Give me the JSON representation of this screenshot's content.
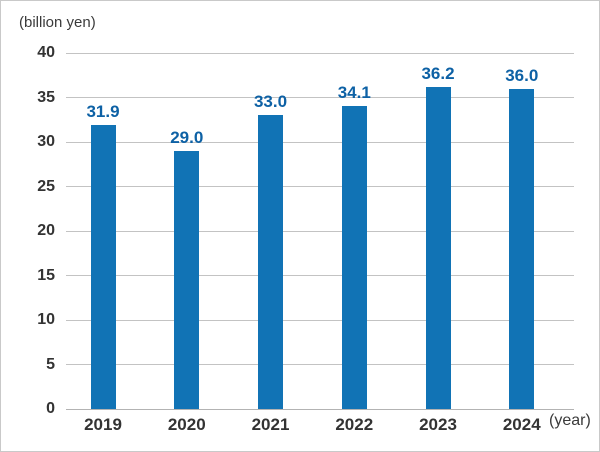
{
  "chart_data": {
    "type": "bar",
    "categories": [
      "2019",
      "2020",
      "2021",
      "2022",
      "2023",
      "2024"
    ],
    "values": [
      31.9,
      29.0,
      33.0,
      34.1,
      36.2,
      36.0
    ],
    "value_decimals": 1,
    "title": "",
    "xlabel": "(year)",
    "ylabel": "(billion yen)",
    "ylim": [
      0,
      40
    ],
    "ytick_step": 5,
    "grid": "horizontal",
    "legend": "none",
    "colors": {
      "bar": "#1173b5",
      "value_label": "#0d61a5",
      "axis_text": "#333333",
      "unit_text": "#3a3a3a",
      "gridline": "#c3c3c3",
      "frame_border": "#c9c9c9",
      "background": "#ffffff"
    }
  }
}
